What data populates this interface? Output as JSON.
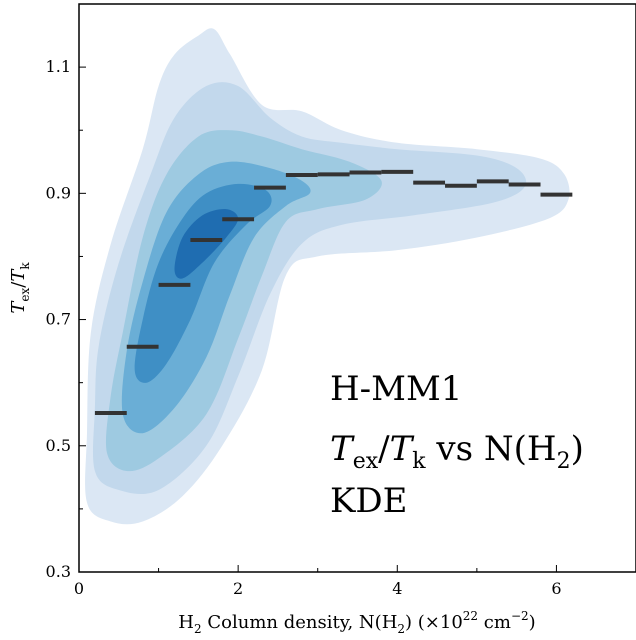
{
  "chart_data": {
    "type": "kde-contour",
    "annotations": [
      {
        "text": "H-MM1"
      },
      {
        "math": {
          "a": "T",
          "a_sub": "ex",
          "b": "T",
          "b_sub": "k",
          "tail": " vs N(H",
          "tail_sub": "2",
          "close": ")"
        }
      },
      {
        "text": "KDE"
      }
    ],
    "xaxis": {
      "label_main": "H",
      "label_main_sub": "2",
      "label_rest": " Column density, N(H",
      "label_rest_sub": "2",
      "label_rest_close": ") (×10",
      "label_exp": "22",
      "label_units": " cm",
      "label_units_exp": "−2",
      "label_end": ")",
      "lim": [
        0,
        7
      ],
      "ticks": [
        0,
        2,
        4,
        6
      ],
      "tick_labels": [
        "0",
        "2",
        "4",
        "6"
      ]
    },
    "yaxis": {
      "label": {
        "a": "T",
        "a_sub": "ex",
        "b": "T",
        "b_sub": "k"
      },
      "lim": [
        0.3,
        1.2
      ],
      "ticks": [
        0.3,
        0.5,
        0.7,
        0.9,
        1.1
      ],
      "tick_labels": [
        "0.3",
        "0.5",
        "0.7",
        "0.9",
        "1.1"
      ]
    },
    "contour_colors": [
      "#dbe7f4",
      "#c2d8ec",
      "#9ecae1",
      "#6aaed6",
      "#3f8fc5",
      "#1f6db1"
    ],
    "binned_median_color": "#333333",
    "binned_medians": [
      {
        "x0": 0.2,
        "x1": 0.6,
        "y": 0.552
      },
      {
        "x0": 0.6,
        "x1": 1.0,
        "y": 0.657
      },
      {
        "x0": 1.0,
        "x1": 1.4,
        "y": 0.755
      },
      {
        "x0": 1.4,
        "x1": 1.8,
        "y": 0.826
      },
      {
        "x0": 1.8,
        "x1": 2.2,
        "y": 0.859
      },
      {
        "x0": 2.2,
        "x1": 2.6,
        "y": 0.909
      },
      {
        "x0": 2.6,
        "x1": 3.0,
        "y": 0.929
      },
      {
        "x0": 3.0,
        "x1": 3.4,
        "y": 0.93
      },
      {
        "x0": 3.4,
        "x1": 3.8,
        "y": 0.933
      },
      {
        "x0": 3.8,
        "x1": 4.2,
        "y": 0.934
      },
      {
        "x0": 4.2,
        "x1": 4.6,
        "y": 0.917
      },
      {
        "x0": 4.6,
        "x1": 5.0,
        "y": 0.912
      },
      {
        "x0": 5.0,
        "x1": 5.4,
        "y": 0.919
      },
      {
        "x0": 5.4,
        "x1": 5.8,
        "y": 0.914
      },
      {
        "x0": 5.8,
        "x1": 6.2,
        "y": 0.898
      }
    ],
    "contours": [
      [
        [
          0.1,
          0.41
        ],
        [
          0.1,
          0.52
        ],
        [
          0.15,
          0.68
        ],
        [
          0.4,
          0.82
        ],
        [
          0.8,
          0.97
        ],
        [
          1.0,
          1.07
        ],
        [
          1.2,
          1.12
        ],
        [
          1.5,
          1.15
        ],
        [
          1.7,
          1.16
        ],
        [
          1.9,
          1.12
        ],
        [
          2.3,
          1.04
        ],
        [
          2.8,
          1.03
        ],
        [
          3.3,
          1.0
        ],
        [
          4.0,
          0.98
        ],
        [
          5.0,
          0.97
        ],
        [
          5.8,
          0.955
        ],
        [
          6.1,
          0.93
        ],
        [
          6.15,
          0.89
        ],
        [
          5.9,
          0.86
        ],
        [
          5.0,
          0.83
        ],
        [
          4.0,
          0.81
        ],
        [
          3.0,
          0.8
        ],
        [
          2.6,
          0.77
        ],
        [
          2.3,
          0.62
        ],
        [
          1.8,
          0.5
        ],
        [
          1.3,
          0.42
        ],
        [
          0.8,
          0.38
        ],
        [
          0.4,
          0.38
        ]
      ],
      [
        [
          0.2,
          0.46
        ],
        [
          0.2,
          0.56
        ],
        [
          0.25,
          0.66
        ],
        [
          0.5,
          0.79
        ],
        [
          0.9,
          0.93
        ],
        [
          1.2,
          1.02
        ],
        [
          1.6,
          1.07
        ],
        [
          2.0,
          1.07
        ],
        [
          2.4,
          1.02
        ],
        [
          2.8,
          0.99
        ],
        [
          3.3,
          0.98
        ],
        [
          4.0,
          0.97
        ],
        [
          5.0,
          0.96
        ],
        [
          5.5,
          0.94
        ],
        [
          5.6,
          0.91
        ],
        [
          5.2,
          0.885
        ],
        [
          4.2,
          0.865
        ],
        [
          3.3,
          0.85
        ],
        [
          2.8,
          0.82
        ],
        [
          2.4,
          0.74
        ],
        [
          2.0,
          0.61
        ],
        [
          1.6,
          0.5
        ],
        [
          1.0,
          0.43
        ],
        [
          0.5,
          0.43
        ]
      ],
      [
        [
          0.35,
          0.49
        ],
        [
          0.4,
          0.58
        ],
        [
          0.55,
          0.68
        ],
        [
          0.8,
          0.83
        ],
        [
          1.1,
          0.93
        ],
        [
          1.5,
          0.99
        ],
        [
          1.9,
          1.0
        ],
        [
          2.3,
          0.99
        ],
        [
          2.8,
          0.97
        ],
        [
          3.4,
          0.95
        ],
        [
          3.8,
          0.92
        ],
        [
          3.6,
          0.89
        ],
        [
          3.0,
          0.875
        ],
        [
          2.6,
          0.855
        ],
        [
          2.3,
          0.77
        ],
        [
          2.0,
          0.67
        ],
        [
          1.6,
          0.55
        ],
        [
          1.0,
          0.48
        ],
        [
          0.6,
          0.46
        ]
      ],
      [
        [
          0.55,
          0.55
        ],
        [
          0.6,
          0.65
        ],
        [
          0.8,
          0.76
        ],
        [
          1.1,
          0.87
        ],
        [
          1.5,
          0.93
        ],
        [
          1.9,
          0.95
        ],
        [
          2.4,
          0.94
        ],
        [
          2.8,
          0.92
        ],
        [
          2.9,
          0.9
        ],
        [
          2.6,
          0.88
        ],
        [
          2.2,
          0.83
        ],
        [
          1.9,
          0.74
        ],
        [
          1.6,
          0.64
        ],
        [
          1.2,
          0.56
        ],
        [
          0.8,
          0.52
        ]
      ],
      [
        [
          0.7,
          0.62
        ],
        [
          0.8,
          0.7
        ],
        [
          1.0,
          0.79
        ],
        [
          1.3,
          0.86
        ],
        [
          1.6,
          0.9
        ],
        [
          2.0,
          0.915
        ],
        [
          2.35,
          0.905
        ],
        [
          2.4,
          0.88
        ],
        [
          2.1,
          0.85
        ],
        [
          1.7,
          0.79
        ],
        [
          1.4,
          0.7
        ],
        [
          1.1,
          0.63
        ],
        [
          0.85,
          0.6
        ]
      ],
      [
        [
          1.2,
          0.78
        ],
        [
          1.3,
          0.83
        ],
        [
          1.55,
          0.865
        ],
        [
          1.85,
          0.875
        ],
        [
          2.0,
          0.86
        ],
        [
          1.85,
          0.83
        ],
        [
          1.55,
          0.79
        ],
        [
          1.3,
          0.765
        ]
      ]
    ]
  }
}
